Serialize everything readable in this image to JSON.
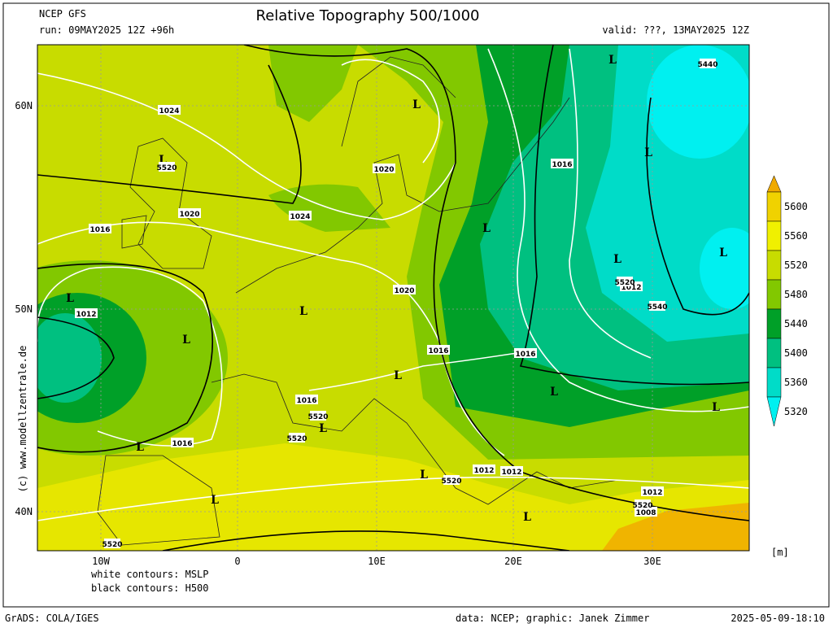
{
  "header": {
    "model": "NCEP GFS",
    "run": "run: 09MAY2025 12Z +96h",
    "title": "Relative Topography 500/1000",
    "valid": "valid: ???, 13MAY2025 12Z"
  },
  "map": {
    "lat_labels": [
      "60N",
      "50N",
      "40N"
    ],
    "lon_labels": [
      "10W",
      "0",
      "10E",
      "20E",
      "30E"
    ],
    "labels": [
      "L",
      "L",
      "L",
      "L",
      "L",
      "L",
      "L",
      "L",
      "L",
      "L",
      "L",
      "L",
      "L",
      "L",
      "L",
      "L",
      "L",
      "L",
      "1024",
      "1020",
      "1016",
      "1024",
      "1020",
      "1016",
      "1020",
      "1012",
      "1012",
      "1016",
      "1016",
      "1016",
      "1016",
      "1012",
      "1012",
      "1012",
      "1008",
      "5440",
      "5520",
      "5520",
      "5520",
      "5520",
      "5520",
      "5520",
      "5520",
      "5540"
    ],
    "copyright": "(c) www.modellzentrale.de"
  },
  "legend": {
    "levels": [
      5600,
      5560,
      5520,
      5480,
      5440,
      5400,
      5360,
      5320
    ],
    "colors": [
      "#f0aa00",
      "#f0d200",
      "#f0f000",
      "#c8dc00",
      "#82c800",
      "#00a028",
      "#00c080",
      "#00dcc8",
      "#00f0f0"
    ],
    "unit": "[m]",
    "contours": [
      "white contours: MSLP",
      "black contours: H500"
    ]
  },
  "footer": {
    "left": "GrADS: COLA/IGES",
    "middle": "data: NCEP; graphic: Janek Zimmer",
    "right": "2025-05-09-18:10"
  }
}
